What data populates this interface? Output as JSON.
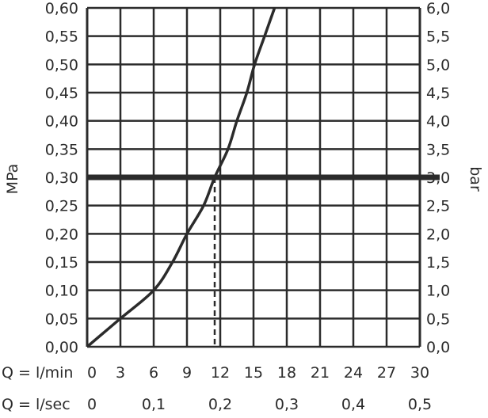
{
  "chart_data": {
    "type": "line",
    "left_axis": {
      "label": "MPa",
      "ylim": [
        0,
        0.6
      ],
      "ticks": [
        "0,00",
        "0,05",
        "0,10",
        "0,15",
        "0,20",
        "0,25",
        "0,30",
        "0,35",
        "0,40",
        "0,45",
        "0,50",
        "0,55",
        "0,60"
      ]
    },
    "right_axis": {
      "label": "bar",
      "ylim": [
        0,
        6
      ],
      "ticks": [
        "0,0",
        "0,5",
        "1,0",
        "1,5",
        "2,0",
        "2,5",
        "3,0",
        "3,5",
        "4,0",
        "4,5",
        "5,0",
        "5,5",
        "6,0"
      ]
    },
    "x_axis_lmin": {
      "label": "Q = l/min",
      "xlim": [
        0,
        30
      ],
      "ticks": [
        "0",
        "3",
        "6",
        "9",
        "12",
        "15",
        "18",
        "21",
        "24",
        "27",
        "30"
      ]
    },
    "x_axis_lsec": {
      "label": "Q = l/sec",
      "ticks": [
        "0",
        "0,1",
        "0,2",
        "0,3",
        "0,4",
        "0,5"
      ]
    },
    "grid": true,
    "series": [
      {
        "x": [
          0,
          3,
          6,
          7.7,
          9,
          10.5,
          11.5,
          12.7,
          13.5,
          14.4,
          15.1,
          16.0,
          16.9
        ],
        "y": [
          0,
          0.05,
          0.1,
          0.15,
          0.2,
          0.25,
          0.3,
          0.35,
          0.4,
          0.45,
          0.5,
          0.55,
          0.6
        ]
      }
    ],
    "reference_line": {
      "y": 0.3
    },
    "marker_line": {
      "x": 11.5
    },
    "colors": {
      "ink": "#2b2b2b"
    }
  }
}
